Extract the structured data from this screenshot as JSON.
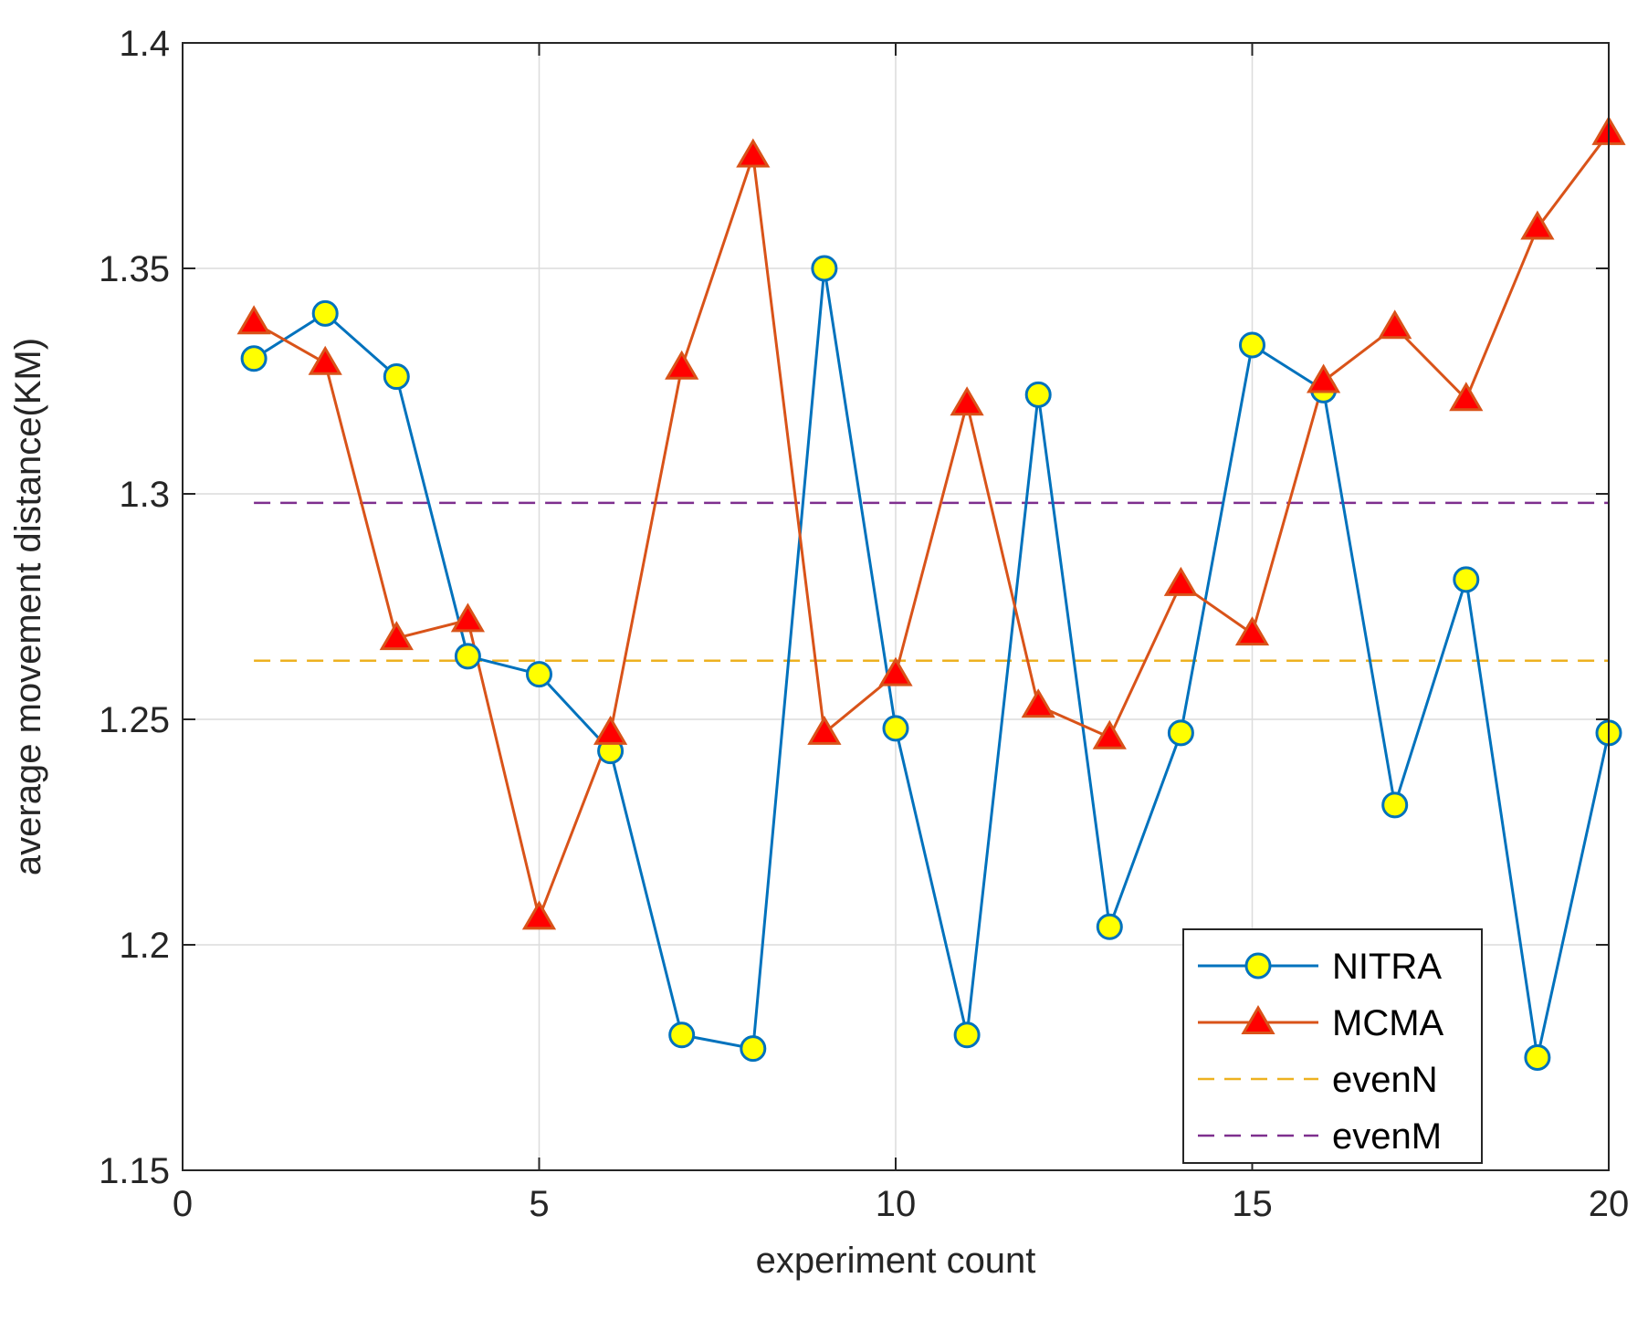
{
  "chart_data": {
    "type": "line",
    "title": "",
    "xlabel": "experiment count",
    "ylabel": "average movement distance(KM)",
    "xlim": [
      0,
      20
    ],
    "ylim": [
      1.15,
      1.4
    ],
    "xticks": [
      0,
      5,
      10,
      15,
      20
    ],
    "yticks": [
      1.15,
      1.2,
      1.25,
      1.3,
      1.35,
      1.4
    ],
    "xtick_labels": [
      "0",
      "5",
      "10",
      "15",
      "20"
    ],
    "ytick_labels": [
      "1.15",
      "1.2",
      "1.25",
      "1.3",
      "1.35",
      "1.4"
    ],
    "grid": true,
    "legend_position": "bottom-right",
    "series": [
      {
        "name": "NITRA",
        "marker": "circle",
        "line_color": "#0072BD",
        "marker_fill": "#FFFF00",
        "dash": false,
        "x": [
          1,
          2,
          3,
          4,
          5,
          6,
          7,
          8,
          9,
          10,
          11,
          12,
          13,
          14,
          15,
          16,
          17,
          18,
          19,
          20
        ],
        "values": [
          1.33,
          1.34,
          1.326,
          1.264,
          1.26,
          1.243,
          1.18,
          1.177,
          1.35,
          1.248,
          1.18,
          1.322,
          1.204,
          1.247,
          1.333,
          1.323,
          1.231,
          1.281,
          1.175,
          1.247
        ]
      },
      {
        "name": "MCMA",
        "marker": "triangle",
        "line_color": "#D95319",
        "marker_fill": "#FF0000",
        "dash": false,
        "x": [
          1,
          2,
          3,
          4,
          5,
          6,
          7,
          8,
          9,
          10,
          11,
          12,
          13,
          14,
          15,
          16,
          17,
          18,
          19,
          20
        ],
        "values": [
          1.338,
          1.329,
          1.268,
          1.272,
          1.206,
          1.247,
          1.328,
          1.375,
          1.247,
          1.26,
          1.32,
          1.253,
          1.246,
          1.28,
          1.269,
          1.325,
          1.337,
          1.321,
          1.359,
          1.38
        ]
      },
      {
        "name": "evenN",
        "marker": "none",
        "line_color": "#EDB120",
        "dash": true,
        "x": [
          1,
          20
        ],
        "values": [
          1.263,
          1.263
        ]
      },
      {
        "name": "evenM",
        "marker": "none",
        "line_color": "#7E2F8E",
        "dash": true,
        "x": [
          1,
          20
        ],
        "values": [
          1.298,
          1.298
        ]
      }
    ]
  }
}
